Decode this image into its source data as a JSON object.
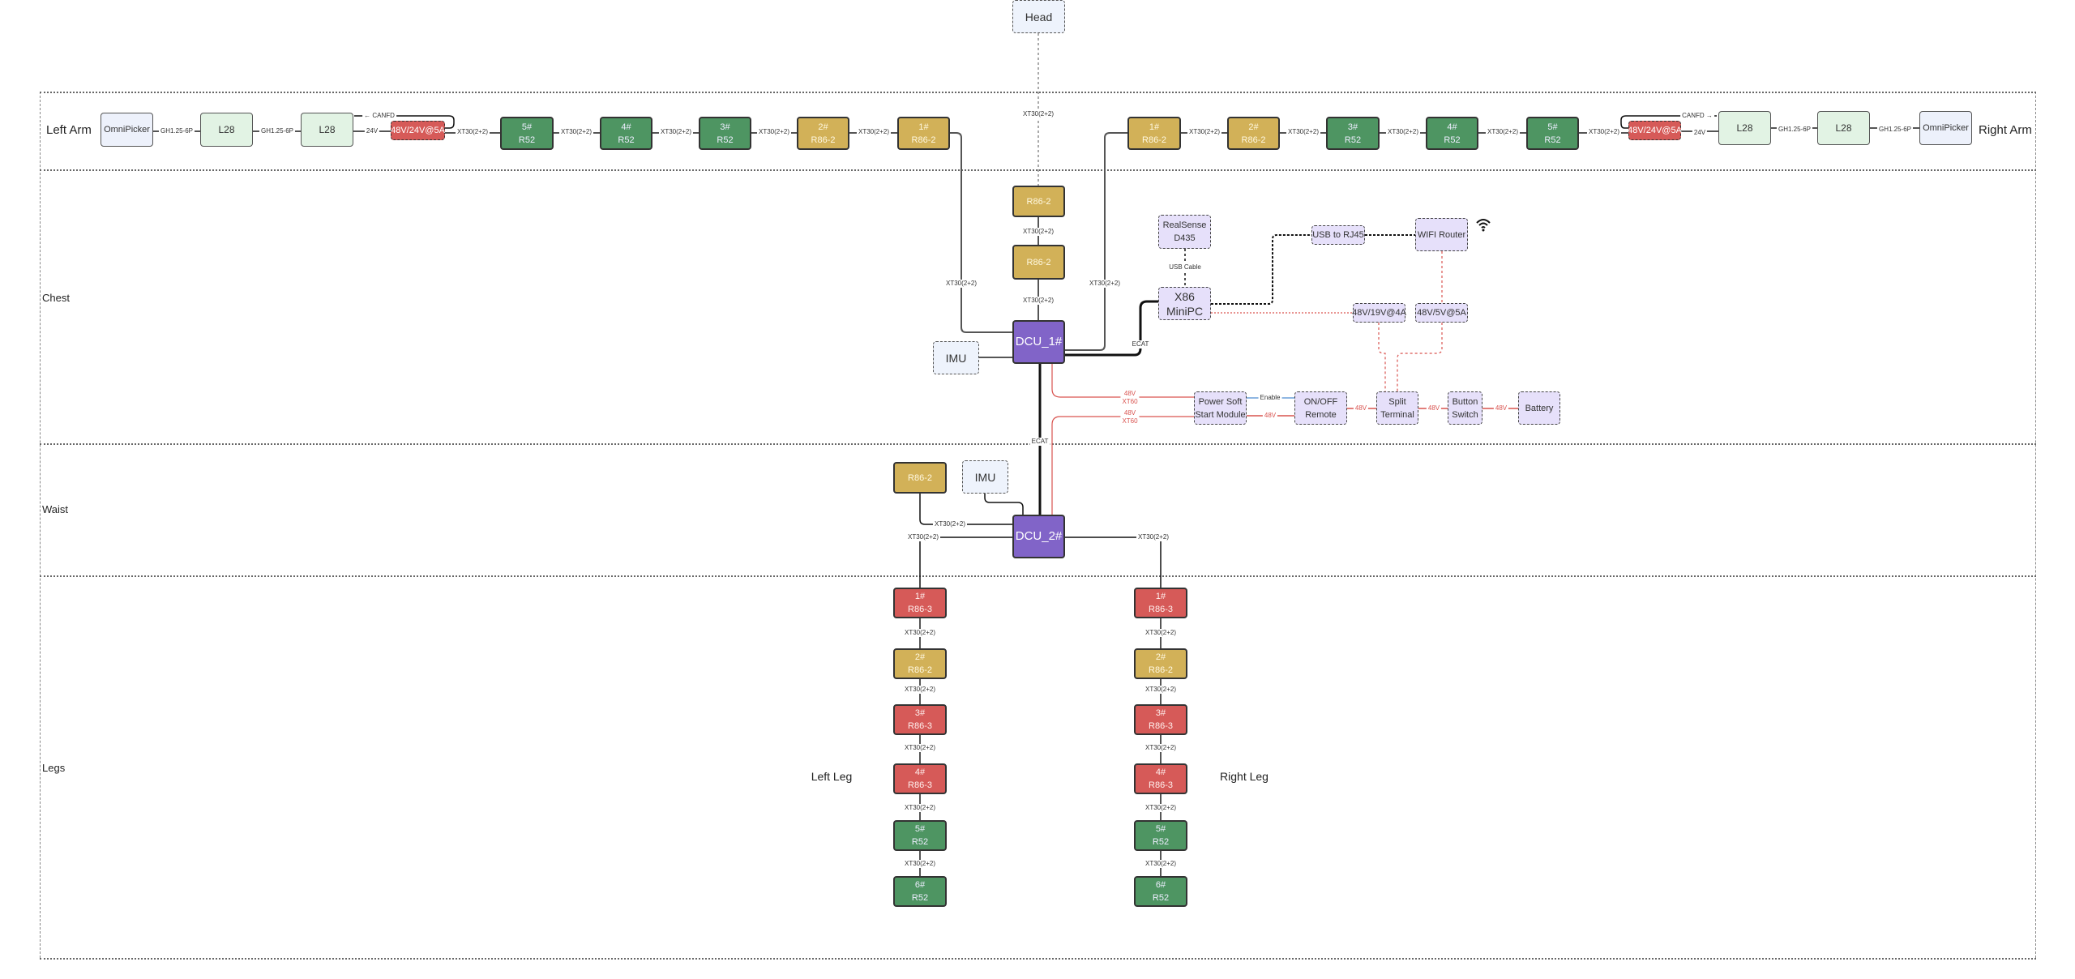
{
  "colors": {
    "r52": "#4e9562",
    "r86_2": "#d2b158",
    "r86_3": "#d65a58",
    "dcu": "#8164c8",
    "aux": "#e6e0fa",
    "power_wire": "#d9534f",
    "enable_wire": "#6a9fd8"
  },
  "rows": {
    "left_arm": "Left Arm",
    "right_arm": "Right Arm",
    "chest": "Chest",
    "waist": "Waist",
    "legs": "Legs"
  },
  "leg_labels": {
    "left": "Left Leg",
    "right": "Right Leg"
  },
  "wifi_icon": "wifi-icon",
  "nodes": [
    {
      "id": "head",
      "kind": "blue",
      "lines": [
        "Head"
      ]
    },
    {
      "id": "la_omni",
      "kind": "omni",
      "lines": [
        "OmniPicker"
      ]
    },
    {
      "id": "la_l28a",
      "kind": "lgreen",
      "lines": [
        "L28"
      ]
    },
    {
      "id": "la_l28b",
      "kind": "lgreen",
      "lines": [
        "L28"
      ]
    },
    {
      "id": "la_pwr",
      "kind": "pwr",
      "lines": [
        "48V/24V@5A"
      ]
    },
    {
      "id": "la_5",
      "kind": "green",
      "lines": [
        "5#",
        "R52"
      ]
    },
    {
      "id": "la_4",
      "kind": "green",
      "lines": [
        "4#",
        "R52"
      ]
    },
    {
      "id": "la_3",
      "kind": "green",
      "lines": [
        "3#",
        "R52"
      ]
    },
    {
      "id": "la_2",
      "kind": "gold",
      "lines": [
        "2#",
        "R86-2"
      ]
    },
    {
      "id": "la_1",
      "kind": "gold",
      "lines": [
        "1#",
        "R86-2"
      ]
    },
    {
      "id": "ra_1",
      "kind": "gold",
      "lines": [
        "1#",
        "R86-2"
      ]
    },
    {
      "id": "ra_2",
      "kind": "gold",
      "lines": [
        "2#",
        "R86-2"
      ]
    },
    {
      "id": "ra_3",
      "kind": "green",
      "lines": [
        "3#",
        "R52"
      ]
    },
    {
      "id": "ra_4",
      "kind": "green",
      "lines": [
        "4#",
        "R52"
      ]
    },
    {
      "id": "ra_5",
      "kind": "green",
      "lines": [
        "5#",
        "R52"
      ]
    },
    {
      "id": "ra_pwr",
      "kind": "pwr",
      "lines": [
        "48V/24V@5A"
      ]
    },
    {
      "id": "ra_l28a",
      "kind": "lgreen",
      "lines": [
        "L28"
      ]
    },
    {
      "id": "ra_l28b",
      "kind": "lgreen",
      "lines": [
        "L28"
      ]
    },
    {
      "id": "ra_omni",
      "kind": "omni",
      "lines": [
        "OmniPicker"
      ]
    },
    {
      "id": "neck_1",
      "kind": "gold",
      "lines": [
        "R86-2"
      ]
    },
    {
      "id": "neck_2",
      "kind": "gold",
      "lines": [
        "R86-2"
      ]
    },
    {
      "id": "dcu1",
      "kind": "dcu",
      "lines": [
        "DCU_1#"
      ]
    },
    {
      "id": "imu1",
      "kind": "blue",
      "lines": [
        "IMU"
      ]
    },
    {
      "id": "realsense",
      "kind": "purple",
      "lines": [
        "RealSense",
        "D435"
      ]
    },
    {
      "id": "x86",
      "kind": "x86",
      "lines": [
        "X86",
        "MiniPC"
      ]
    },
    {
      "id": "usb_rj45",
      "kind": "purple",
      "lines": [
        "USB to RJ45"
      ]
    },
    {
      "id": "wifi_router",
      "kind": "purple",
      "lines": [
        "WIFI Router"
      ]
    },
    {
      "id": "conv_19v",
      "kind": "purple",
      "lines": [
        "48V/19V@4A"
      ]
    },
    {
      "id": "conv_5v",
      "kind": "purple",
      "lines": [
        "48V/5V@5A"
      ]
    },
    {
      "id": "soft_start",
      "kind": "purple",
      "lines": [
        "Power Soft",
        "Start Module"
      ]
    },
    {
      "id": "onoff",
      "kind": "purple",
      "lines": [
        "ON/OFF",
        "Remote"
      ]
    },
    {
      "id": "split",
      "kind": "purple",
      "lines": [
        "Split",
        "Terminal"
      ]
    },
    {
      "id": "button",
      "kind": "purple",
      "lines": [
        "Button",
        "Switch"
      ]
    },
    {
      "id": "battery",
      "kind": "purple",
      "lines": [
        "Battery"
      ]
    },
    {
      "id": "waist_r86",
      "kind": "gold",
      "lines": [
        "R86-2"
      ]
    },
    {
      "id": "imu2",
      "kind": "blue",
      "lines": [
        "IMU"
      ]
    },
    {
      "id": "dcu2",
      "kind": "dcu",
      "lines": [
        "DCU_2#"
      ]
    },
    {
      "id": "ll_1",
      "kind": "red",
      "lines": [
        "1#",
        "R86-3"
      ]
    },
    {
      "id": "ll_2",
      "kind": "gold",
      "lines": [
        "2#",
        "R86-2"
      ]
    },
    {
      "id": "ll_3",
      "kind": "red",
      "lines": [
        "3#",
        "R86-3"
      ]
    },
    {
      "id": "ll_4",
      "kind": "red",
      "lines": [
        "4#",
        "R86-3"
      ]
    },
    {
      "id": "ll_5",
      "kind": "green",
      "lines": [
        "5#",
        "R52"
      ]
    },
    {
      "id": "ll_6",
      "kind": "green",
      "lines": [
        "6#",
        "R52"
      ]
    },
    {
      "id": "rl_1",
      "kind": "red",
      "lines": [
        "1#",
        "R86-3"
      ]
    },
    {
      "id": "rl_2",
      "kind": "gold",
      "lines": [
        "2#",
        "R86-2"
      ]
    },
    {
      "id": "rl_3",
      "kind": "red",
      "lines": [
        "3#",
        "R86-3"
      ]
    },
    {
      "id": "rl_4",
      "kind": "red",
      "lines": [
        "4#",
        "R86-3"
      ]
    },
    {
      "id": "rl_5",
      "kind": "green",
      "lines": [
        "5#",
        "R52"
      ]
    },
    {
      "id": "rl_6",
      "kind": "green",
      "lines": [
        "6#",
        "R52"
      ]
    }
  ],
  "edge_labels": [
    {
      "id": "la_gh1",
      "text": "GH1.25-6P"
    },
    {
      "id": "la_gh2",
      "text": "GH1.25-6P"
    },
    {
      "id": "la_24v",
      "text": "24V"
    },
    {
      "id": "la_canfd",
      "text": "← CANFD"
    },
    {
      "id": "la_x1",
      "text": "XT30(2+2)"
    },
    {
      "id": "la_x2",
      "text": "XT30(2+2)"
    },
    {
      "id": "la_x3",
      "text": "XT30(2+2)"
    },
    {
      "id": "la_x4",
      "text": "XT30(2+2)"
    },
    {
      "id": "la_x5",
      "text": "XT30(2+2)"
    },
    {
      "id": "ra_x1",
      "text": "XT30(2+2)"
    },
    {
      "id": "ra_x2",
      "text": "XT30(2+2)"
    },
    {
      "id": "ra_x3",
      "text": "XT30(2+2)"
    },
    {
      "id": "ra_x4",
      "text": "XT30(2+2)"
    },
    {
      "id": "ra_x5",
      "text": "XT30(2+2)"
    },
    {
      "id": "ra_canfd",
      "text": "CANFD →"
    },
    {
      "id": "ra_24v",
      "text": "24V"
    },
    {
      "id": "ra_gh1",
      "text": "GH1.25-6P"
    },
    {
      "id": "ra_gh2",
      "text": "GH1.25-6P"
    },
    {
      "id": "head_x",
      "text": "XT30(2+2)"
    },
    {
      "id": "neck_x1",
      "text": "XT30(2+2)"
    },
    {
      "id": "neck_x2",
      "text": "XT30(2+2)"
    },
    {
      "id": "chest_lx",
      "text": "XT30(2+2)"
    },
    {
      "id": "chest_rx",
      "text": "XT30(2+2)"
    },
    {
      "id": "ecat1",
      "text": "ECAT"
    },
    {
      "id": "usb_cable",
      "text": "USB Cable"
    },
    {
      "id": "p_48a",
      "text": "48V\nXT60",
      "red": true
    },
    {
      "id": "p_48b",
      "text": "48V\nXT60",
      "red": true
    },
    {
      "id": "p_enable",
      "text": "Enable"
    },
    {
      "id": "p_48c",
      "text": "48V",
      "red": true
    },
    {
      "id": "p_48d",
      "text": "48V",
      "red": true
    },
    {
      "id": "p_48e",
      "text": "48V",
      "red": true
    },
    {
      "id": "p_48f",
      "text": "48V",
      "red": true
    },
    {
      "id": "ecat2",
      "text": "ECAT"
    },
    {
      "id": "w_x1",
      "text": "XT30(2+2)"
    },
    {
      "id": "w_x2",
      "text": "XT30(2+2)"
    },
    {
      "id": "w_x3",
      "text": "XT30(2+2)"
    },
    {
      "id": "ll_x1",
      "text": "XT30(2+2)"
    },
    {
      "id": "ll_x2",
      "text": "XT30(2+2)"
    },
    {
      "id": "ll_x3",
      "text": "XT30(2+2)"
    },
    {
      "id": "ll_x4",
      "text": "XT30(2+2)"
    },
    {
      "id": "ll_x5",
      "text": "XT30(2+2)"
    },
    {
      "id": "rl_x1",
      "text": "XT30(2+2)"
    },
    {
      "id": "rl_x2",
      "text": "XT30(2+2)"
    },
    {
      "id": "rl_x3",
      "text": "XT30(2+2)"
    },
    {
      "id": "rl_x4",
      "text": "XT30(2+2)"
    },
    {
      "id": "rl_x5",
      "text": "XT30(2+2)"
    }
  ]
}
